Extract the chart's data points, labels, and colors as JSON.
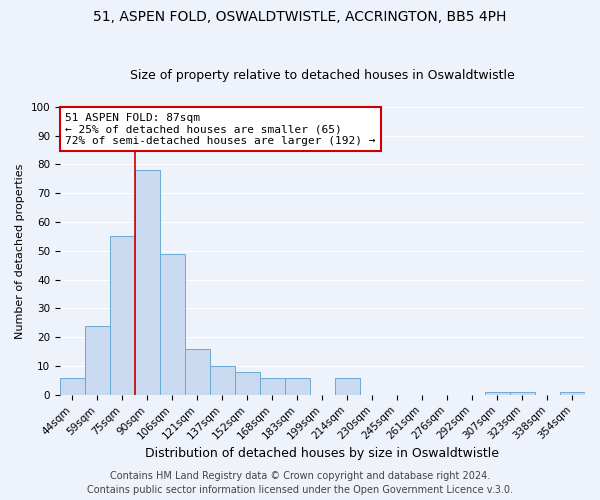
{
  "title": "51, ASPEN FOLD, OSWALDTWISTLE, ACCRINGTON, BB5 4PH",
  "subtitle": "Size of property relative to detached houses in Oswaldtwistle",
  "xlabel": "Distribution of detached houses by size in Oswaldtwistle",
  "ylabel": "Number of detached properties",
  "bar_labels": [
    "44sqm",
    "59sqm",
    "75sqm",
    "90sqm",
    "106sqm",
    "121sqm",
    "137sqm",
    "152sqm",
    "168sqm",
    "183sqm",
    "199sqm",
    "214sqm",
    "230sqm",
    "245sqm",
    "261sqm",
    "276sqm",
    "292sqm",
    "307sqm",
    "323sqm",
    "338sqm",
    "354sqm"
  ],
  "bar_values": [
    6,
    24,
    55,
    78,
    49,
    16,
    10,
    8,
    6,
    6,
    0,
    6,
    0,
    0,
    0,
    0,
    0,
    1,
    1,
    0,
    1
  ],
  "bar_color": "#c8d9f0",
  "bar_edge_color": "#6aaad4",
  "background_color": "#eef2fb",
  "grid_color": "#ffffff",
  "vline_index": 3,
  "vline_color": "#cc0000",
  "annotation_title": "51 ASPEN FOLD: 87sqm",
  "annotation_line1": "← 25% of detached houses are smaller (65)",
  "annotation_line2": "72% of semi-detached houses are larger (192) →",
  "annotation_box_facecolor": "#ffffff",
  "annotation_box_edgecolor": "#cc0000",
  "ylim": [
    0,
    100
  ],
  "yticks": [
    0,
    10,
    20,
    30,
    40,
    50,
    60,
    70,
    80,
    90,
    100
  ],
  "footnote1": "Contains HM Land Registry data © Crown copyright and database right 2024.",
  "footnote2": "Contains public sector information licensed under the Open Government Licence v.3.0.",
  "title_fontsize": 10,
  "subtitle_fontsize": 9,
  "xlabel_fontsize": 9,
  "ylabel_fontsize": 8,
  "tick_fontsize": 7.5,
  "annotation_fontsize": 8,
  "footnote_fontsize": 7
}
